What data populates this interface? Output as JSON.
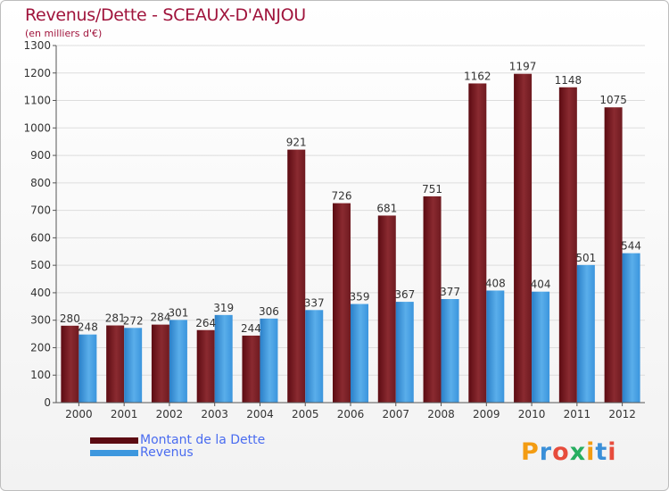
{
  "title": "Revenus/Dette - SCEAUX-D'ANJOU",
  "subtitle": "(en milliers d'€)",
  "brand": {
    "letters": [
      "P",
      "r",
      "o",
      "x",
      "i",
      "t",
      "i"
    ],
    "colors": [
      "#f39c12",
      "#3a8fd8",
      "#e74c3c",
      "#27ae60",
      "#f39c12",
      "#3a8fd8",
      "#e74c3c"
    ]
  },
  "chart_data": {
    "type": "bar",
    "categories": [
      "2000",
      "2001",
      "2002",
      "2003",
      "2004",
      "2005",
      "2006",
      "2007",
      "2008",
      "2009",
      "2010",
      "2011",
      "2012"
    ],
    "series": [
      {
        "name": "Montant de la Dette",
        "values": [
          280,
          281,
          284,
          264,
          244,
          921,
          726,
          681,
          751,
          1162,
          1197,
          1148,
          1075
        ],
        "color": "#7a1c22"
      },
      {
        "name": "Revenus",
        "values": [
          248,
          272,
          301,
          319,
          306,
          337,
          359,
          367,
          377,
          408,
          404,
          501,
          544
        ],
        "color": "#3d97de"
      }
    ],
    "ylim": [
      0,
      1300
    ],
    "yticks": [
      0,
      100,
      200,
      300,
      400,
      500,
      600,
      700,
      800,
      900,
      1000,
      1100,
      1200,
      1300
    ],
    "grid": true,
    "legend": "bottom-left"
  }
}
